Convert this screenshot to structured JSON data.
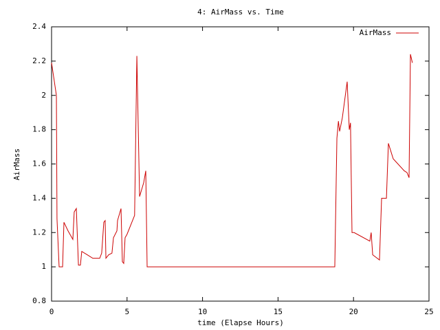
{
  "chart_data": {
    "type": "line",
    "title": "4: AirMass vs. Time",
    "x_label": "time (Elapse Hours)",
    "y_label": "AirMass",
    "x": [
      0,
      0.32,
      0.36,
      0.5,
      0.73,
      0.82,
      1.09,
      1.41,
      1.5,
      1.64,
      1.78,
      1.91,
      2.0,
      2.37,
      2.73,
      3.19,
      3.32,
      3.46,
      3.55,
      3.6,
      3.78,
      4.0,
      4.1,
      4.33,
      4.37,
      4.6,
      4.69,
      4.78,
      4.87,
      5.0,
      5.5,
      5.65,
      5.83,
      6.1,
      6.24,
      6.33,
      18.76,
      18.9,
      19.0,
      19.08,
      19.26,
      19.58,
      19.72,
      19.8,
      19.9,
      20.04,
      21.08,
      21.17,
      21.27,
      21.72,
      21.86,
      22.18,
      22.31,
      22.63,
      23.36,
      23.54,
      23.68,
      23.77,
      23.9
    ],
    "series": [
      {
        "name": "AirMass",
        "color": "#cc0000",
        "values": [
          2.19,
          2.0,
          1.28,
          1.0,
          1.0,
          1.26,
          1.21,
          1.16,
          1.32,
          1.34,
          1.01,
          1.01,
          1.09,
          1.07,
          1.05,
          1.05,
          1.08,
          1.26,
          1.27,
          1.05,
          1.07,
          1.08,
          1.17,
          1.21,
          1.27,
          1.34,
          1.03,
          1.02,
          1.17,
          1.19,
          1.3,
          2.23,
          1.41,
          1.49,
          1.56,
          1.0,
          1.0,
          1.75,
          1.85,
          1.79,
          1.87,
          2.08,
          1.8,
          1.84,
          1.2,
          1.2,
          1.15,
          1.2,
          1.07,
          1.04,
          1.4,
          1.4,
          1.72,
          1.63,
          1.56,
          1.55,
          1.52,
          2.24,
          2.19
        ]
      }
    ],
    "xlim": [
      0,
      25
    ],
    "xticks": [
      0,
      5,
      10,
      15,
      20,
      25
    ],
    "ylim": [
      0.8,
      2.4
    ],
    "yticks": [
      0.8,
      1,
      1.2,
      1.4,
      1.6,
      1.8,
      2,
      2.2,
      2.4
    ],
    "legend": "top-right"
  }
}
